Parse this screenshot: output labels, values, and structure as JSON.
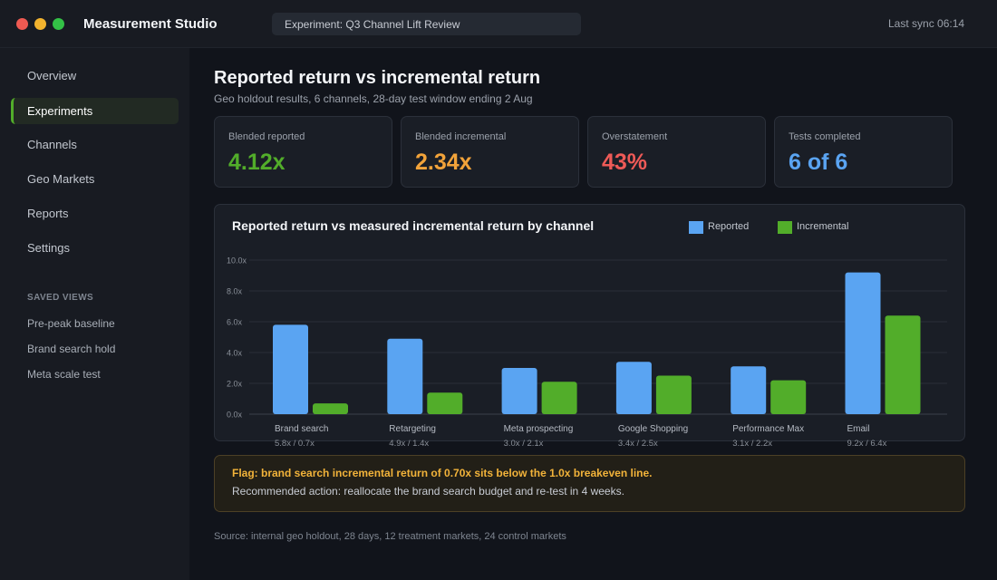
{
  "titlebar": {
    "app_title": "Measurement Studio",
    "experiment_field": "Experiment: Q3 Channel Lift Review",
    "last_sync": "Last sync 06:14"
  },
  "sidebar": {
    "items": [
      {
        "label": "Overview",
        "active": false
      },
      {
        "label": "Experiments",
        "active": true
      },
      {
        "label": "Channels",
        "active": false
      },
      {
        "label": "Geo Markets",
        "active": false
      },
      {
        "label": "Reports",
        "active": false
      },
      {
        "label": "Settings",
        "active": false
      }
    ],
    "saved_heading": "SAVED VIEWS",
    "saved_views": [
      "Pre-peak baseline",
      "Brand search hold",
      "Meta scale test"
    ]
  },
  "header": {
    "title": "Reported return vs incremental return",
    "subtitle": "Geo holdout results, 6 channels, 28-day test window ending 2 Aug"
  },
  "kpis": [
    {
      "label": "Blended reported",
      "value": "4.12x",
      "color": "#52ad2a"
    },
    {
      "label": "Blended incremental",
      "value": "2.34x",
      "color": "#f2a33a"
    },
    {
      "label": "Overstatement",
      "value": "43%",
      "color": "#ee5a57"
    },
    {
      "label": "Tests completed",
      "value": "6 of 6",
      "color": "#5aa4f2"
    }
  ],
  "chart": {
    "title": "Reported return vs measured incremental return by channel"
  },
  "chart_data": {
    "type": "bar",
    "title": "Reported return vs measured incremental return by channel",
    "categories": [
      "Brand search",
      "Retargeting",
      "Meta prospecting",
      "Google Shopping",
      "Performance Max",
      "Email"
    ],
    "series": [
      {
        "name": "Reported",
        "color": "#5aa4f2",
        "values": [
          5.8,
          4.9,
          3.0,
          3.4,
          3.1,
          9.2
        ]
      },
      {
        "name": "Incremental",
        "color": "#52ad2a",
        "values": [
          0.7,
          1.4,
          2.1,
          2.5,
          2.2,
          6.4
        ]
      }
    ],
    "value_labels": [
      "5.8x / 0.7x",
      "4.9x / 1.4x",
      "3.0x / 2.1x",
      "3.4x / 2.5x",
      "3.1x / 2.2x",
      "9.2x / 6.4x"
    ],
    "y_ticks": [
      "0.0x",
      "2.0x",
      "4.0x",
      "6.0x",
      "8.0x",
      "10.0x"
    ],
    "ylim": [
      0,
      10
    ],
    "grid": true,
    "legend_position": "top-right"
  },
  "flag": {
    "title": "Flag: brand search incremental return of 0.70x sits below the 1.0x breakeven line.",
    "action": "Recommended action: reallocate the brand search budget and re-test in 4 weeks."
  },
  "source": "Source: internal geo holdout, 28 days, 12 treatment markets, 24 control markets"
}
